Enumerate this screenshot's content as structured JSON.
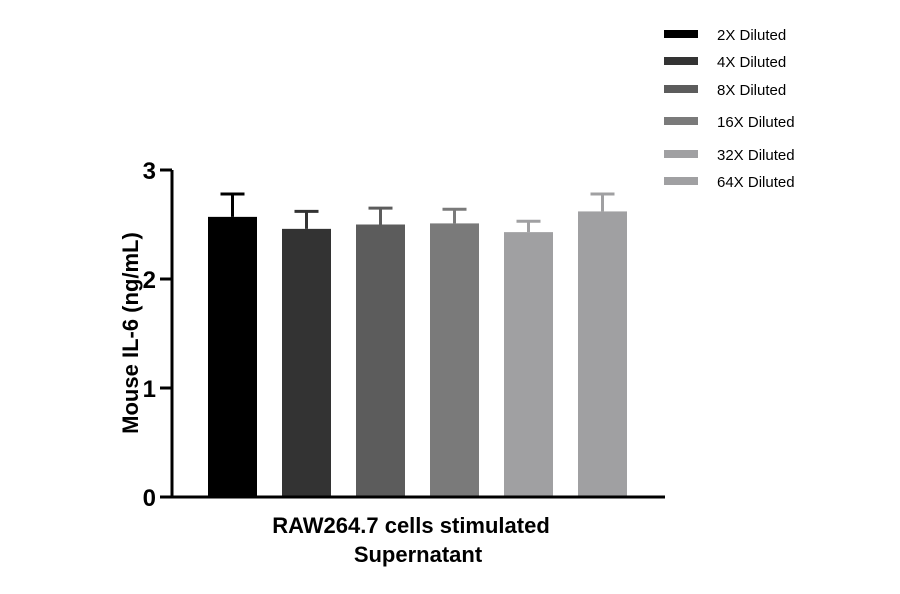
{
  "chart_data": {
    "type": "bar",
    "ylabel": "Mouse IL-6 (ng/mL)",
    "xlabel": [
      "RAW264.7 cells stimulated",
      "Supernatant"
    ],
    "ylim": [
      0,
      3
    ],
    "yticks": [
      0,
      1,
      2,
      3
    ],
    "grid": false,
    "legend_position": "top-right",
    "series": [
      {
        "name": "2X Diluted",
        "value": 2.57,
        "error": 0.21,
        "color": "#000000"
      },
      {
        "name": "4X Diluted",
        "value": 2.46,
        "error": 0.16,
        "color": "#333333"
      },
      {
        "name": "8X Diluted",
        "value": 2.5,
        "error": 0.15,
        "color": "#5c5c5c"
      },
      {
        "name": "16X Diluted",
        "value": 2.51,
        "error": 0.13,
        "color": "#7a7a7a"
      },
      {
        "name": "32X Diluted",
        "value": 2.43,
        "error": 0.1,
        "color": "#a0a0a2"
      },
      {
        "name": "64X Diluted",
        "value": 2.62,
        "error": 0.16,
        "color": "#a0a0a2"
      }
    ]
  }
}
